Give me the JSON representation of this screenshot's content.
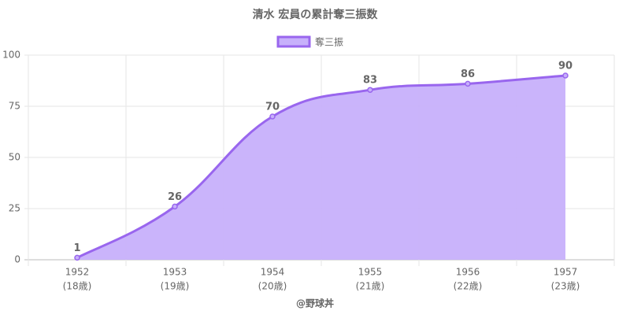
{
  "chart_data": {
    "type": "line",
    "title": "清水 宏員の累計奪三振数",
    "categories": [
      "1952",
      "1953",
      "1954",
      "1955",
      "1956",
      "1957"
    ],
    "category_sublabels": [
      "(18歳)",
      "(19歳)",
      "(20歳)",
      "(21歳)",
      "(22歳)",
      "(23歳)"
    ],
    "series": [
      {
        "name": "奪三振",
        "color": "#9966ee",
        "fill": "#c7b0fb",
        "values": [
          1,
          26,
          70,
          83,
          86,
          90
        ]
      }
    ],
    "ylim": [
      0,
      100
    ],
    "yticks": [
      0,
      25,
      50,
      75,
      100
    ],
    "grid": true,
    "legend": "top",
    "footer": "@野球丼"
  }
}
